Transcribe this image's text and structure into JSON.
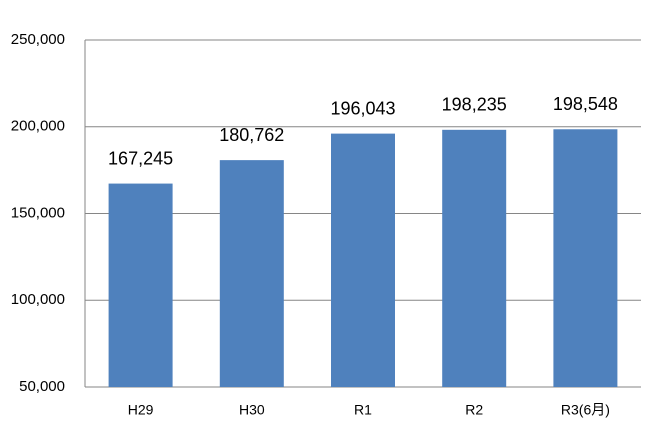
{
  "chart_data": {
    "type": "bar",
    "categories": [
      "H29",
      "H30",
      "R1",
      "R2",
      "R3(6月)"
    ],
    "values": [
      167245,
      180762,
      196043,
      198235,
      198548
    ],
    "value_labels": [
      "167,245",
      "180,762",
      "196,043",
      "198,235",
      "198,548"
    ],
    "color": "#4f81bd",
    "ylim": [
      50000,
      250000
    ],
    "yticks": [
      {
        "value": 50000,
        "label": "50,000"
      },
      {
        "value": 100000,
        "label": "100,000"
      },
      {
        "value": 150000,
        "label": "150,000"
      },
      {
        "value": 200000,
        "label": "200,000"
      },
      {
        "value": 250000,
        "label": "250,000"
      }
    ],
    "grid": true
  }
}
